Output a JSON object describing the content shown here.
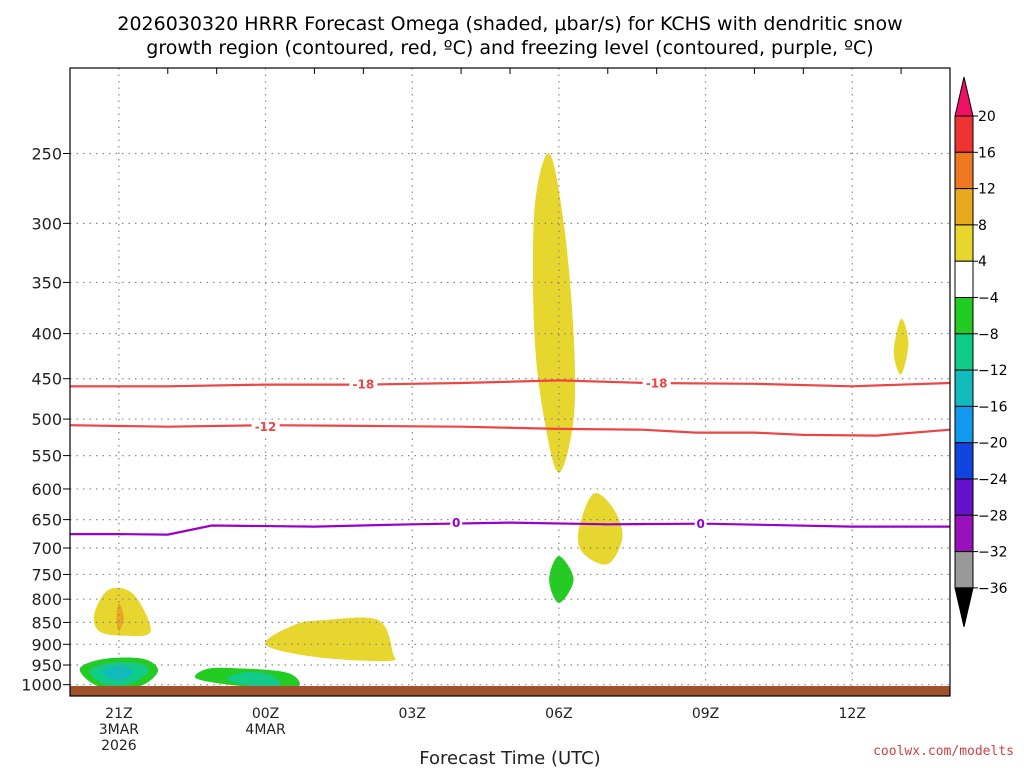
{
  "title": {
    "line1": "2026030320 HRRR Forecast Omega (shaded, μbar/s) for KCHS with dendritic snow",
    "line2": "growth region (contoured, red, ºC) and freezing level (contoured, purple, ºC)"
  },
  "credit": {
    "text": "coolwx.com/modelts",
    "color": "#d04040"
  },
  "colors": {
    "dgz_contour": "#ee4444",
    "freezing_contour": "#9900cc",
    "ground": "#a0522d",
    "grid": "#888888"
  },
  "chart_data": {
    "type": "heatmap",
    "xlabel": "Forecast Time (UTC)",
    "x_range_hours": [
      -1,
      17
    ],
    "x_ticks": [
      {
        "hour": 0,
        "lines": [
          "21Z",
          "3MAR",
          "2026"
        ]
      },
      {
        "hour": 3,
        "lines": [
          "00Z",
          "4MAR"
        ]
      },
      {
        "hour": 6,
        "lines": [
          "03Z"
        ]
      },
      {
        "hour": 9,
        "lines": [
          "06Z"
        ]
      },
      {
        "hour": 12,
        "lines": [
          "09Z"
        ]
      },
      {
        "hour": 15,
        "lines": [
          "12Z"
        ]
      }
    ],
    "y_axis": "pressure (hPa)",
    "y_range_hpa": [
      200,
      1030
    ],
    "y_ticks": [
      250,
      300,
      350,
      400,
      450,
      500,
      550,
      600,
      650,
      700,
      750,
      800,
      850,
      900,
      950,
      1000
    ],
    "colorbar": {
      "levels": [
        20,
        16,
        12,
        8,
        4,
        -4,
        -8,
        -12,
        -16,
        -20,
        -24,
        -28,
        -32,
        -36
      ],
      "colors": [
        "#ee1166",
        "#ee3333",
        "#ee7722",
        "#e8a820",
        "#e6d62e",
        "#ffffff",
        "#22cc22",
        "#11cc88",
        "#11bbbb",
        "#1199ee",
        "#1144dd",
        "#6611cc",
        "#9911bb",
        "#999999",
        "#000000"
      ]
    },
    "contours": [
      {
        "name": "dgz-minus-18",
        "label": "-18",
        "points": [
          [
            -1,
            459
          ],
          [
            1,
            459
          ],
          [
            3,
            457
          ],
          [
            5,
            457
          ],
          [
            7,
            455
          ],
          [
            9,
            452
          ],
          [
            10.8,
            455
          ],
          [
            13,
            456
          ],
          [
            15,
            459
          ],
          [
            17,
            455
          ]
        ],
        "label_at": [
          [
            5,
            456
          ],
          [
            11,
            455
          ]
        ]
      },
      {
        "name": "dgz-minus-12",
        "label": "-12",
        "points": [
          [
            -1,
            508
          ],
          [
            1,
            510
          ],
          [
            3,
            508
          ],
          [
            5,
            509
          ],
          [
            7,
            510
          ],
          [
            9,
            513
          ],
          [
            10.7,
            514
          ],
          [
            11.8,
            518
          ],
          [
            13,
            518
          ],
          [
            14,
            521
          ],
          [
            15.5,
            522
          ],
          [
            17,
            514
          ]
        ],
        "label_at": [
          [
            3,
            510
          ]
        ]
      },
      {
        "name": "freezing-level-0",
        "label": "0",
        "points": [
          [
            -1,
            675
          ],
          [
            0,
            675
          ],
          [
            1,
            676
          ],
          [
            1.9,
            660
          ],
          [
            4,
            662
          ],
          [
            6,
            658
          ],
          [
            8,
            655
          ],
          [
            10,
            658
          ],
          [
            12,
            657
          ],
          [
            15,
            662
          ],
          [
            17,
            662
          ]
        ],
        "label_at": [
          [
            6.9,
            655
          ],
          [
            11.9,
            657
          ]
        ]
      }
    ],
    "omega_regions": [
      {
        "name": "omega-plus4-upper-column",
        "value": 4,
        "color": "#e6d62e",
        "points": [
          [
            8.5,
            290
          ],
          [
            8.8,
            250
          ],
          [
            9.1,
            300
          ],
          [
            9.3,
            400
          ],
          [
            9.3,
            500
          ],
          [
            9.0,
            575
          ],
          [
            8.7,
            500
          ],
          [
            8.5,
            400
          ],
          [
            8.5,
            290
          ]
        ]
      },
      {
        "name": "omega-plus4-east",
        "value": 4,
        "color": "#e6d62e",
        "points": [
          [
            16.0,
            385
          ],
          [
            16.15,
            410
          ],
          [
            16.0,
            445
          ],
          [
            15.85,
            420
          ],
          [
            16.0,
            385
          ]
        ]
      },
      {
        "name": "omega-plus4-midlevel",
        "value": 4,
        "color": "#e6d62e",
        "points": [
          [
            9.4,
            670
          ],
          [
            9.7,
            608
          ],
          [
            10.1,
            630
          ],
          [
            10.3,
            680
          ],
          [
            10.0,
            730
          ],
          [
            9.5,
            710
          ],
          [
            9.4,
            670
          ]
        ]
      },
      {
        "name": "omega-minus4-midlevel",
        "value": -4,
        "color": "#22cc22",
        "points": [
          [
            8.8,
            760
          ],
          [
            9.0,
            715
          ],
          [
            9.3,
            760
          ],
          [
            9.0,
            808
          ],
          [
            8.8,
            760
          ]
        ]
      },
      {
        "name": "omega-plus4-low-east",
        "value": 4,
        "color": "#e6d62e",
        "points": [
          [
            3.0,
            900
          ],
          [
            3.6,
            855
          ],
          [
            4.2,
            845
          ],
          [
            5.3,
            845
          ],
          [
            5.6,
            920
          ],
          [
            5.5,
            940
          ],
          [
            4.0,
            930
          ],
          [
            3.0,
            900
          ]
        ]
      },
      {
        "name": "omega-plus4-low-west",
        "value": 4,
        "color": "#e6d62e",
        "points": [
          [
            -0.5,
            830
          ],
          [
            -0.2,
            780
          ],
          [
            0.3,
            790
          ],
          [
            0.65,
            870
          ],
          [
            0.1,
            880
          ],
          [
            -0.4,
            870
          ],
          [
            -0.5,
            830
          ]
        ]
      },
      {
        "name": "omega-plus8-low-west",
        "value": 8,
        "color": "#e8a820",
        "points": [
          [
            -0.05,
            840
          ],
          [
            0.0,
            808
          ],
          [
            0.1,
            840
          ],
          [
            0.0,
            870
          ],
          [
            -0.05,
            840
          ]
        ]
      },
      {
        "name": "omega-minus4-near-surface-west",
        "value": -4,
        "color": "#22cc22",
        "points": [
          [
            -0.8,
            960
          ],
          [
            -0.3,
            935
          ],
          [
            0.5,
            935
          ],
          [
            0.8,
            965
          ],
          [
            0.4,
            1005
          ],
          [
            -0.4,
            1005
          ],
          [
            -0.8,
            960
          ]
        ]
      },
      {
        "name": "omega-minus8-near-surface-west",
        "value": -8,
        "color": "#11cc88",
        "points": [
          [
            -0.6,
            965
          ],
          [
            -0.2,
            945
          ],
          [
            0.4,
            945
          ],
          [
            0.6,
            968
          ],
          [
            0.2,
            998
          ],
          [
            -0.3,
            998
          ],
          [
            -0.6,
            965
          ]
        ]
      },
      {
        "name": "omega-minus12-near-surface-west",
        "value": -12,
        "color": "#11bbbb",
        "points": [
          [
            -0.35,
            968
          ],
          [
            0.0,
            952
          ],
          [
            0.3,
            968
          ],
          [
            0.0,
            990
          ],
          [
            -0.35,
            968
          ]
        ]
      },
      {
        "name": "omega-minus4-near-surface-east",
        "value": -4,
        "color": "#22cc22",
        "points": [
          [
            1.6,
            985
          ],
          [
            1.8,
            960
          ],
          [
            2.4,
            958
          ],
          [
            3.4,
            968
          ],
          [
            3.7,
            995
          ],
          [
            3.5,
            1008
          ],
          [
            2.6,
            1005
          ],
          [
            1.6,
            985
          ]
        ]
      },
      {
        "name": "omega-minus8-near-surface-east",
        "value": -8,
        "color": "#11cc88",
        "points": [
          [
            2.2,
            985
          ],
          [
            2.6,
            968
          ],
          [
            3.1,
            975
          ],
          [
            3.3,
            1000
          ],
          [
            2.7,
            1003
          ],
          [
            2.2,
            985
          ]
        ]
      }
    ]
  }
}
